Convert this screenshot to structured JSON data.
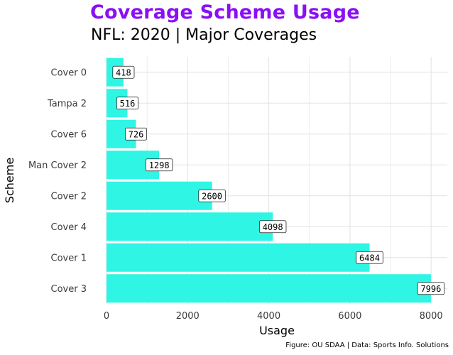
{
  "title": "Coverage Scheme Usage",
  "subtitle": "NFL: 2020 | Major Coverages",
  "caption": "Figure: OU SDAA | Data: Sports Info. Solutions",
  "colors": {
    "title": "#8a0ff5",
    "bar": "#2ef5e4",
    "grid": "#e3e3e3",
    "label_border": "#222222",
    "label_fill": "#ffffff"
  },
  "chart_data": {
    "type": "bar",
    "orientation": "horizontal",
    "categories": [
      "Cover 0",
      "Tampa 2",
      "Cover 6",
      "Man Cover 2",
      "Cover 2",
      "Cover 4",
      "Cover 1",
      "Cover 3"
    ],
    "values": [
      418,
      516,
      726,
      1298,
      2600,
      4098,
      6484,
      7996
    ],
    "data_labels": [
      "418",
      "516",
      "726",
      "1298",
      "2600",
      "4098",
      "6484",
      "7996"
    ],
    "title": "Coverage Scheme Usage",
    "subtitle": "NFL: 2020 | Major Coverages",
    "xlabel": "Usage",
    "ylabel": "Scheme",
    "xlim": [
      0,
      8400
    ],
    "x_ticks": [
      0,
      2000,
      4000,
      6000,
      8000
    ],
    "x_tick_labels": [
      "0",
      "2000",
      "4000",
      "6000",
      "8000"
    ],
    "grid": true,
    "legend": "none"
  }
}
